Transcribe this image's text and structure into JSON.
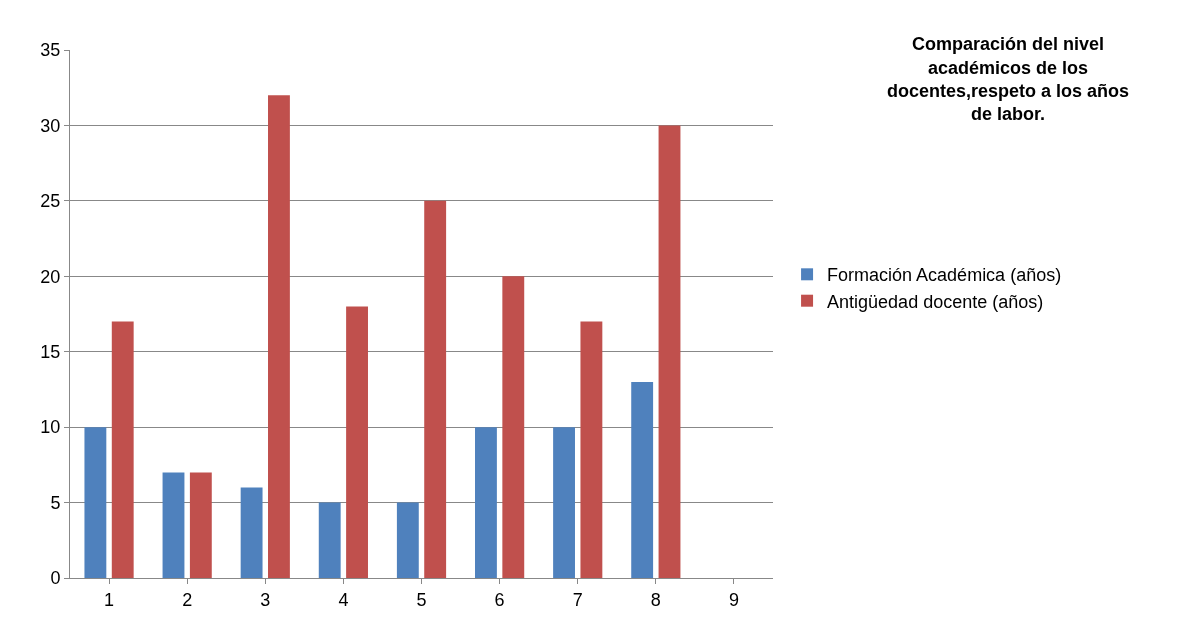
{
  "chart_data": {
    "type": "bar",
    "title": "Comparación del nivel académicos de los docentes,respeto a los años de labor.",
    "categories": [
      "1",
      "2",
      "3",
      "4",
      "5",
      "6",
      "7",
      "8",
      "9"
    ],
    "series": [
      {
        "name": "Formación Académica (años)",
        "color": "#4f81bd",
        "values": [
          10,
          7,
          6,
          5,
          5,
          10,
          10,
          13,
          null
        ]
      },
      {
        "name": "Antigüedad docente (años)",
        "color": "#c0504d",
        "values": [
          17,
          7,
          32,
          18,
          25,
          20,
          17,
          30,
          null
        ]
      }
    ],
    "ylim": [
      0,
      35
    ],
    "yticks": [
      0,
      5,
      10,
      15,
      20,
      25,
      30,
      35
    ],
    "grid": "y",
    "legend": "right"
  }
}
